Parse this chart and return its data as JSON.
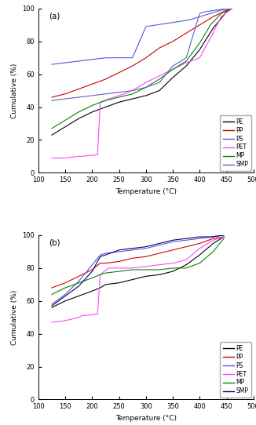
{
  "panel_a": {
    "PE": {
      "x": [
        125,
        150,
        175,
        200,
        225,
        250,
        275,
        300,
        325,
        350,
        375,
        400,
        425,
        450,
        460
      ],
      "y": [
        23,
        28,
        33,
        37,
        40,
        43,
        45,
        47,
        50,
        58,
        65,
        75,
        88,
        98,
        100
      ]
    },
    "PP": {
      "x": [
        125,
        150,
        175,
        200,
        225,
        250,
        275,
        300,
        325,
        350,
        375,
        400,
        425,
        450,
        460
      ],
      "y": [
        46,
        48,
        51,
        54,
        57,
        61,
        65,
        70,
        76,
        80,
        85,
        90,
        95,
        99,
        100
      ]
    },
    "PS": {
      "x": [
        125,
        150,
        175,
        200,
        225,
        250,
        275,
        300,
        320,
        340,
        360,
        380,
        400,
        420,
        440,
        460
      ],
      "y": [
        66,
        67,
        68,
        69,
        70,
        70,
        70,
        89,
        90,
        91,
        92,
        93,
        95,
        97,
        99,
        100
      ]
    },
    "PET": {
      "x": [
        125,
        150,
        175,
        180,
        210,
        215,
        240,
        260,
        280,
        300,
        325,
        350,
        375,
        400,
        420,
        440,
        460
      ],
      "y": [
        9,
        9,
        10,
        10,
        11,
        43,
        46,
        48,
        51,
        55,
        59,
        63,
        67,
        70,
        82,
        95,
        100
      ]
    },
    "MP": {
      "x": [
        125,
        150,
        175,
        200,
        225,
        250,
        275,
        300,
        325,
        350,
        375,
        400,
        420,
        440,
        460
      ],
      "y": [
        27,
        32,
        37,
        41,
        44,
        46,
        48,
        52,
        57,
        63,
        68,
        79,
        90,
        97,
        100
      ]
    },
    "SMP": {
      "x": [
        125,
        150,
        175,
        200,
        225,
        250,
        275,
        300,
        325,
        350,
        375,
        400,
        410,
        430,
        450,
        460
      ],
      "y": [
        44,
        45,
        46,
        47,
        48,
        49,
        50,
        52,
        55,
        65,
        70,
        97,
        98,
        99,
        100,
        100
      ]
    }
  },
  "panel_b": {
    "PE": {
      "x": [
        125,
        150,
        175,
        200,
        215,
        225,
        250,
        275,
        300,
        325,
        350,
        375,
        400,
        425,
        445
      ],
      "y": [
        56,
        60,
        63,
        66,
        68,
        70,
        71,
        73,
        75,
        76,
        78,
        82,
        88,
        95,
        99
      ]
    },
    "PP": {
      "x": [
        125,
        150,
        175,
        200,
        215,
        225,
        250,
        275,
        300,
        325,
        350,
        375,
        400,
        425,
        445
      ],
      "y": [
        68,
        71,
        75,
        79,
        83,
        83,
        84,
        86,
        87,
        89,
        91,
        93,
        95,
        98,
        99
      ]
    },
    "PS": {
      "x": [
        125,
        150,
        175,
        200,
        215,
        225,
        250,
        275,
        300,
        325,
        350,
        375,
        400,
        425,
        445
      ],
      "y": [
        58,
        64,
        72,
        82,
        88,
        89,
        90,
        91,
        92,
        94,
        96,
        97,
        98,
        99,
        100
      ]
    },
    "PET": {
      "x": [
        125,
        150,
        175,
        180,
        210,
        215,
        230,
        250,
        275,
        300,
        325,
        350,
        375,
        400,
        425,
        445
      ],
      "y": [
        47,
        48,
        50,
        51,
        52,
        76,
        80,
        80,
        80,
        81,
        82,
        83,
        85,
        92,
        97,
        99
      ]
    },
    "MP": {
      "x": [
        125,
        150,
        175,
        200,
        215,
        225,
        250,
        275,
        300,
        325,
        350,
        375,
        400,
        425,
        445
      ],
      "y": [
        64,
        68,
        71,
        74,
        76,
        77,
        78,
        79,
        79,
        79,
        80,
        80,
        83,
        90,
        98
      ]
    },
    "SMP": {
      "x": [
        125,
        150,
        175,
        200,
        215,
        225,
        250,
        275,
        300,
        325,
        350,
        375,
        400,
        420,
        445
      ],
      "y": [
        57,
        63,
        69,
        78,
        87,
        88,
        91,
        92,
        93,
        95,
        97,
        98,
        99,
        99,
        100
      ]
    }
  },
  "colors": {
    "PE": "#000000",
    "PP": "#cc0000",
    "PS": "#5555dd",
    "PET": "#ff44ff",
    "MP": "#008800",
    "SMP_a": "#5566bb",
    "SMP_b": "#000066"
  },
  "xlim": [
    100,
    500
  ],
  "ylim_a": [
    0,
    100
  ],
  "ylim_b": [
    0,
    100
  ],
  "xlabel": "Temperature (°C)",
  "ylabel": "Cumulative (%)",
  "xticks": [
    100,
    150,
    200,
    250,
    300,
    350,
    400,
    450,
    500
  ],
  "yticks": [
    0,
    20,
    40,
    60,
    80,
    100
  ]
}
